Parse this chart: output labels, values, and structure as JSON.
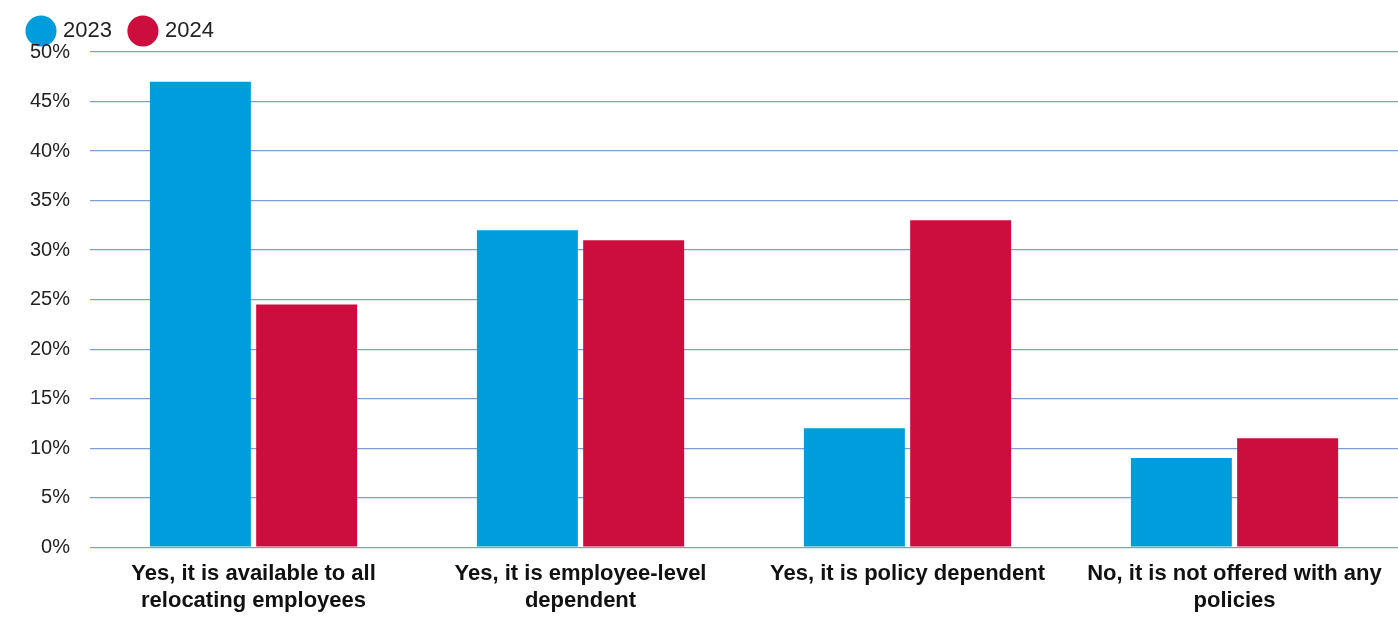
{
  "chart_data": {
    "type": "bar",
    "categories": [
      "Yes, it is available to all relocating employees",
      "Yes, it is employee-level dependent",
      "Yes, it is policy dependent",
      "No, it is not offered with any policies"
    ],
    "series": [
      {
        "name": "2023",
        "color": "#009ddc",
        "values": [
          47,
          32,
          12,
          9
        ]
      },
      {
        "name": "2024",
        "color": "#cc0e3f",
        "values": [
          24.5,
          31,
          33,
          11
        ]
      }
    ],
    "ylim": [
      0,
      50
    ],
    "yticks": [
      {
        "value": 0,
        "label": "0%"
      },
      {
        "value": 5,
        "label": "5%"
      },
      {
        "value": 10,
        "label": "10%"
      },
      {
        "value": 15,
        "label": "15%"
      },
      {
        "value": 20,
        "label": "20%"
      },
      {
        "value": 25,
        "label": "25%"
      },
      {
        "value": 30,
        "label": "30%"
      },
      {
        "value": 35,
        "label": "35%"
      },
      {
        "value": 40,
        "label": "40%"
      },
      {
        "value": 45,
        "label": "45%"
      },
      {
        "value": 50,
        "label": "50%"
      }
    ],
    "grid": "y",
    "legend": "top left"
  }
}
